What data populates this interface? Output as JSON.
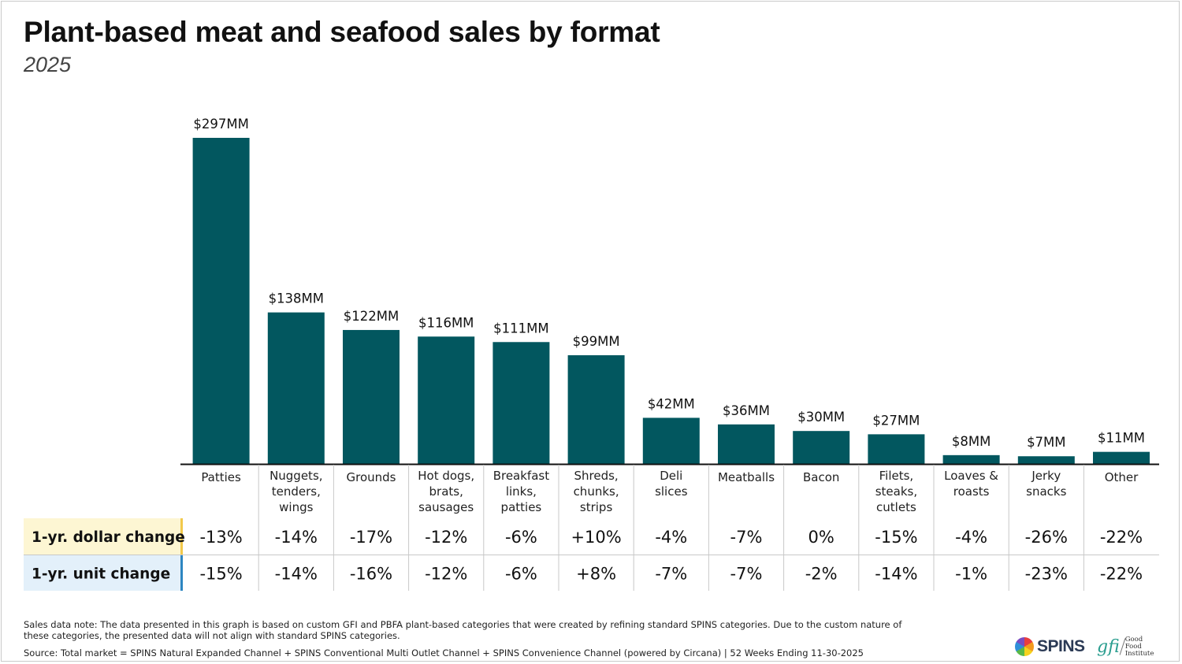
{
  "title": "Plant-based meat and seafood sales by format",
  "subtitle": "2025",
  "chart_data": {
    "type": "bar",
    "title": "Plant-based meat and seafood sales by format",
    "subtitle": "2025",
    "categories": [
      [
        "Patties"
      ],
      [
        "Nuggets,",
        "tenders,",
        "wings"
      ],
      [
        "Grounds"
      ],
      [
        "Hot dogs,",
        "brats,",
        "sausages"
      ],
      [
        "Breakfast",
        "links,",
        "patties"
      ],
      [
        "Shreds,",
        "chunks,",
        "strips"
      ],
      [
        "Deli",
        "slices"
      ],
      [
        "Meatballs"
      ],
      [
        "Bacon"
      ],
      [
        "Filets,",
        "steaks,",
        "cutlets"
      ],
      [
        "Loaves &",
        "roasts"
      ],
      [
        "Jerky",
        "snacks"
      ],
      [
        "Other"
      ]
    ],
    "values": [
      297,
      138,
      122,
      116,
      111,
      99,
      42,
      36,
      30,
      27,
      8,
      7,
      11
    ],
    "value_labels": [
      "$297MM",
      "$138MM",
      "$122MM",
      "$116MM",
      "$111MM",
      "$99MM",
      "$42MM",
      "$36MM",
      "$30MM",
      "$27MM",
      "$8MM",
      "$7MM",
      "$11MM"
    ],
    "unit": "$MM",
    "ylim": [
      0,
      297
    ],
    "bar_color": "#02575F",
    "grid": false,
    "table_rows": [
      {
        "label": "1-yr. dollar change",
        "label_bg": "#FDF6D3",
        "accent": "#F2C94C",
        "values": [
          "-13%",
          "-14%",
          "-17%",
          "-12%",
          "-6%",
          "+10%",
          "-4%",
          "-7%",
          "0%",
          "-15%",
          "-4%",
          "-26%",
          "-22%"
        ]
      },
      {
        "label": "1-yr. unit change",
        "label_bg": "#E3F0FA",
        "accent": "#2E86C1",
        "values": [
          "-15%",
          "-14%",
          "-16%",
          "-12%",
          "-6%",
          "+8%",
          "-7%",
          "-7%",
          "-2%",
          "-14%",
          "-1%",
          "-23%",
          "-22%"
        ]
      }
    ]
  },
  "footer": {
    "note": "Sales data note: The data presented in this graph is based on custom GFI and PBFA plant-based categories that were created by refining standard SPINS categories. Due to the custom nature of these categories, the presented data will not align with standard SPINS categories.",
    "source": "Source: Total market = SPINS Natural Expanded Channel + SPINS Conventional Multi Outlet Channel + SPINS Convenience Channel (powered by Circana) | 52 Weeks Ending 11-30-2025"
  },
  "logos": {
    "spins": "SPINS",
    "gfi": "gfi",
    "gfi_name": [
      "Good Food",
      "Institute"
    ]
  }
}
